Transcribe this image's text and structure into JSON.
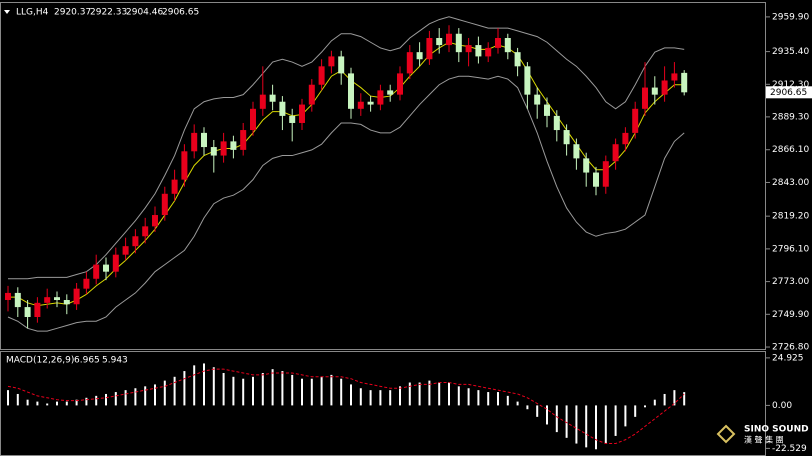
{
  "chart_data": [
    {
      "type": "candlestick",
      "header": {
        "symbol": "LLG,H4",
        "open": 2920.37,
        "high": 2922.33,
        "low": 2904.46,
        "close": 2906.65
      },
      "last_price": 2906.65,
      "up_color": "#e8001c",
      "down_color": "#c8f5c0",
      "open": [
        2760,
        2765,
        2755,
        2748,
        2758,
        2762,
        2760,
        2757,
        2768,
        2775,
        2785,
        2780,
        2792,
        2798,
        2805,
        2812,
        2820,
        2835,
        2845,
        2865,
        2878,
        2868,
        2862,
        2872,
        2866,
        2880,
        2895,
        2905,
        2900,
        2890,
        2885,
        2898,
        2912,
        2925,
        2932,
        2920,
        2895,
        2900,
        2898,
        2908,
        2905,
        2920,
        2935,
        2930,
        2945,
        2940,
        2948,
        2935,
        2940,
        2932,
        2938,
        2945,
        2935,
        2925,
        2905,
        2898,
        2890,
        2880,
        2870,
        2860,
        2850,
        2840,
        2858,
        2870,
        2878,
        2895,
        2910,
        2905,
        2915,
        2920.37
      ],
      "high": [
        2770,
        2769,
        2760,
        2762,
        2768,
        2766,
        2764,
        2772,
        2780,
        2792,
        2790,
        2797,
        2804,
        2810,
        2818,
        2826,
        2840,
        2852,
        2870,
        2884,
        2882,
        2873,
        2878,
        2876,
        2885,
        2900,
        2925,
        2912,
        2904,
        2895,
        2902,
        2916,
        2930,
        2936,
        2936,
        2924,
        2906,
        2904,
        2912,
        2912,
        2925,
        2940,
        2942,
        2950,
        2952,
        2954,
        2952,
        2945,
        2946,
        2942,
        2952,
        2948,
        2938,
        2928,
        2910,
        2903,
        2894,
        2884,
        2874,
        2864,
        2854,
        2862,
        2874,
        2882,
        2900,
        2928,
        2918,
        2925,
        2928,
        2922.33
      ],
      "low": [
        2752,
        2748,
        2740,
        2744,
        2754,
        2755,
        2750,
        2753,
        2764,
        2771,
        2774,
        2776,
        2788,
        2793,
        2800,
        2808,
        2816,
        2830,
        2840,
        2860,
        2862,
        2850,
        2857,
        2860,
        2862,
        2876,
        2890,
        2894,
        2880,
        2872,
        2880,
        2893,
        2908,
        2920,
        2912,
        2888,
        2890,
        2893,
        2894,
        2900,
        2901,
        2916,
        2925,
        2926,
        2934,
        2935,
        2928,
        2925,
        2927,
        2928,
        2934,
        2930,
        2918,
        2895,
        2888,
        2882,
        2872,
        2862,
        2852,
        2840,
        2834,
        2835,
        2852,
        2865,
        2874,
        2890,
        2898,
        2900,
        2910,
        2904.46
      ],
      "close": [
        2765,
        2755,
        2748,
        2758,
        2762,
        2760,
        2757,
        2768,
        2775,
        2785,
        2780,
        2792,
        2798,
        2805,
        2812,
        2820,
        2835,
        2845,
        2865,
        2878,
        2868,
        2862,
        2872,
        2866,
        2880,
        2895,
        2905,
        2900,
        2890,
        2885,
        2898,
        2912,
        2925,
        2932,
        2920,
        2895,
        2900,
        2898,
        2908,
        2905,
        2920,
        2935,
        2930,
        2945,
        2940,
        2948,
        2935,
        2940,
        2932,
        2938,
        2945,
        2935,
        2925,
        2905,
        2898,
        2890,
        2880,
        2870,
        2860,
        2850,
        2840,
        2858,
        2870,
        2878,
        2895,
        2910,
        2905,
        2915,
        2920,
        2906.65
      ],
      "lines": [
        {
          "color": "#d8d800",
          "values": [
            2762,
            2762,
            2758,
            2756,
            2757,
            2758,
            2757,
            2760,
            2764,
            2770,
            2775,
            2782,
            2788,
            2795,
            2802,
            2810,
            2820,
            2830,
            2843,
            2855,
            2862,
            2865,
            2867,
            2867,
            2870,
            2878,
            2887,
            2893,
            2893,
            2890,
            2891,
            2898,
            2908,
            2918,
            2922,
            2915,
            2910,
            2904,
            2903,
            2904,
            2910,
            2918,
            2925,
            2933,
            2938,
            2942,
            2940,
            2939,
            2937,
            2937,
            2940,
            2938,
            2933,
            2922,
            2910,
            2900,
            2890,
            2880,
            2870,
            2860,
            2852,
            2852,
            2858,
            2866,
            2878,
            2892,
            2900,
            2906,
            2912,
            2912
          ]
        },
        {
          "color": "#9a9a9a",
          "values": [
            2775,
            2775,
            2775,
            2776,
            2776,
            2776,
            2776,
            2778,
            2780,
            2785,
            2792,
            2800,
            2808,
            2816,
            2825,
            2835,
            2848,
            2862,
            2880,
            2895,
            2900,
            2902,
            2903,
            2903,
            2905,
            2912,
            2920,
            2928,
            2930,
            2928,
            2925,
            2928,
            2935,
            2943,
            2948,
            2948,
            2946,
            2942,
            2938,
            2936,
            2938,
            2945,
            2950,
            2955,
            2958,
            2960,
            2958,
            2956,
            2954,
            2952,
            2952,
            2952,
            2950,
            2948,
            2946,
            2942,
            2936,
            2930,
            2925,
            2918,
            2910,
            2900,
            2895,
            2900,
            2912,
            2925,
            2935,
            2938,
            2938,
            2937
          ]
        },
        {
          "color": "#9a9a9a",
          "values": [
            2748,
            2745,
            2740,
            2738,
            2738,
            2740,
            2742,
            2744,
            2745,
            2745,
            2748,
            2755,
            2760,
            2765,
            2772,
            2780,
            2785,
            2790,
            2795,
            2805,
            2818,
            2828,
            2832,
            2834,
            2838,
            2845,
            2855,
            2860,
            2862,
            2862,
            2864,
            2866,
            2870,
            2878,
            2885,
            2885,
            2884,
            2880,
            2878,
            2878,
            2882,
            2890,
            2898,
            2905,
            2912,
            2916,
            2918,
            2918,
            2917,
            2916,
            2918,
            2916,
            2910,
            2895,
            2878,
            2858,
            2840,
            2825,
            2815,
            2808,
            2805,
            2807,
            2808,
            2810,
            2815,
            2820,
            2840,
            2860,
            2872,
            2878
          ]
        }
      ],
      "ylim": [
        2724.7,
        2968.3
      ],
      "yticks": [
        {
          "value": 2959.9,
          "label": "2959.90"
        },
        {
          "value": 2935.4,
          "label": "2935.40"
        },
        {
          "value": 2912.3,
          "label": "2912.30"
        },
        {
          "value": 2889.3,
          "label": "2889.30"
        },
        {
          "value": 2866.1,
          "label": "2866.10"
        },
        {
          "value": 2843,
          "label": "2843.00"
        },
        {
          "value": 2819.2,
          "label": "2819.20"
        },
        {
          "value": 2796.1,
          "label": "2796.10"
        },
        {
          "value": 2773,
          "label": "2773.00"
        },
        {
          "value": 2749.9,
          "label": "2749.90"
        },
        {
          "value": 2726.8,
          "label": "2726.80"
        }
      ]
    },
    {
      "type": "macd",
      "title": "MACD(12,26,9)",
      "hist_label": 6.965,
      "signal_label": 5.943,
      "hist_color": "#ffffff",
      "signal_color": "#e8001c",
      "histogram": [
        8,
        6,
        3,
        2,
        1,
        2,
        2,
        3,
        4,
        5,
        6,
        7,
        8,
        9,
        10,
        11,
        13,
        15,
        18,
        21,
        22,
        20,
        17,
        15,
        14,
        15,
        17,
        19,
        18,
        16,
        14,
        14,
        15,
        16,
        14,
        11,
        9,
        8,
        8,
        8,
        10,
        12,
        12,
        13,
        12,
        12,
        10,
        9,
        8,
        7,
        7,
        5,
        2,
        -2,
        -6,
        -10,
        -14,
        -17,
        -20,
        -22,
        -23,
        -20,
        -16,
        -11,
        -6,
        -1,
        3,
        6,
        8,
        6.965
      ],
      "signal": [
        10,
        9,
        7,
        5,
        4,
        3,
        2.5,
        2.5,
        3,
        3.5,
        4,
        5,
        6,
        7,
        8,
        9,
        10,
        12,
        14,
        16,
        18,
        19,
        19,
        18,
        17,
        16,
        16,
        17,
        17,
        17,
        16,
        15,
        15,
        15,
        15,
        14,
        12,
        11,
        10,
        9,
        9,
        10,
        11,
        11,
        12,
        12,
        11,
        11,
        10,
        9,
        8,
        7,
        6,
        4,
        1,
        -2,
        -6,
        -9,
        -12,
        -15,
        -18,
        -20,
        -20,
        -18,
        -15,
        -11,
        -7,
        -3,
        1,
        5.943
      ],
      "ylim": [
        -26,
        28
      ],
      "yticks": [
        24.925,
        {
          "value": 0,
          "label": "0.00"
        },
        -22.529
      ]
    }
  ],
  "logo": {
    "name": "SINO SOUND",
    "chinese": "漢 聲 集 團"
  }
}
